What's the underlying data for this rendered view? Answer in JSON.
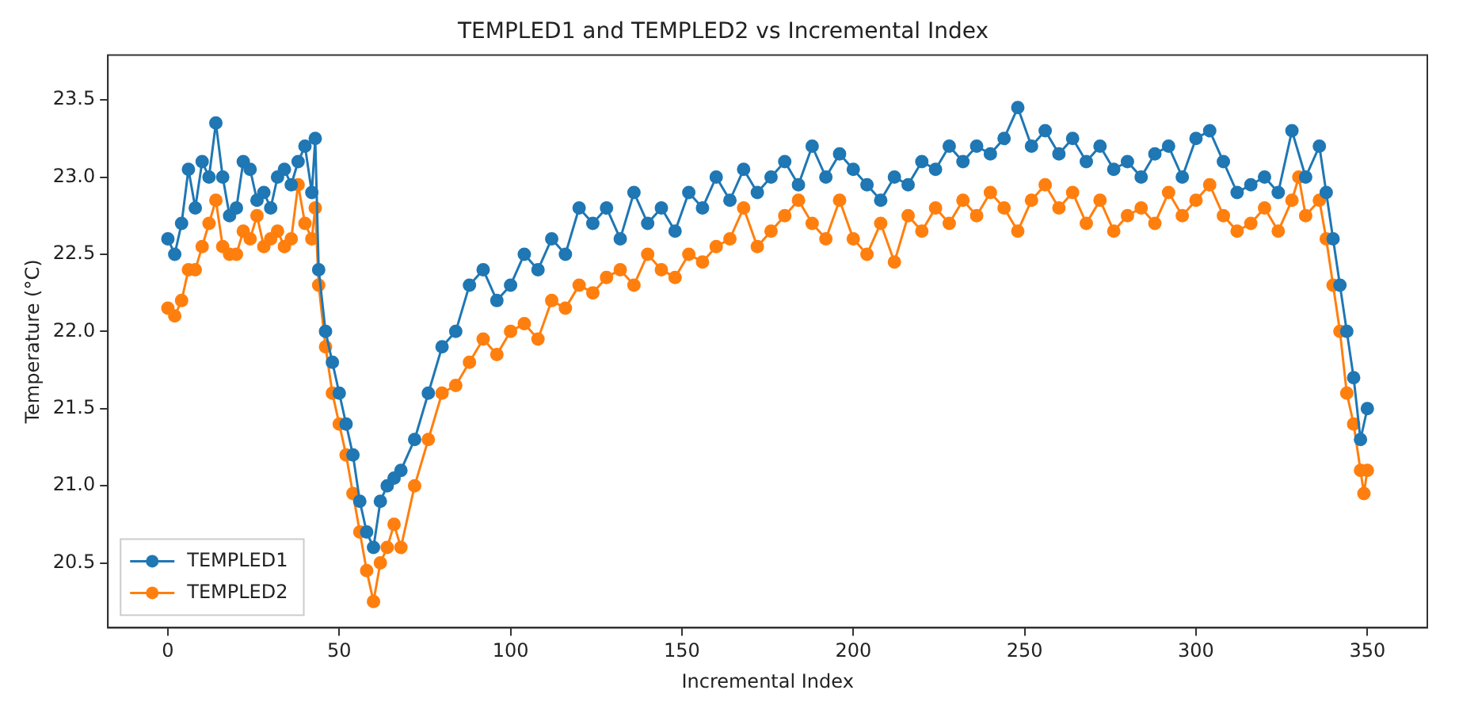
{
  "chart_data": {
    "type": "line",
    "title": "TEMPLED1 and TEMPLED2 vs Incremental Index",
    "xlabel": "Incremental Index",
    "ylabel": "Temperature (°C)",
    "xlim": [
      -17.5,
      367.5
    ],
    "xticks": [
      0,
      50,
      100,
      150,
      200,
      250,
      300,
      350
    ],
    "ylim": [
      20.08,
      23.79
    ],
    "yticks": [
      20.5,
      {
        "value": 21,
        "label": "21.0"
      },
      21.5,
      {
        "value": 22,
        "label": "22.0"
      },
      22.5,
      {
        "value": 23,
        "label": "23.0"
      },
      23.5
    ],
    "legend": "bottom left",
    "marker": "circle",
    "line_style": "solid",
    "grid": false,
    "series": [
      {
        "name": "TEMPLED1",
        "color": "#1f77b4",
        "x": [
          0,
          2,
          4,
          6,
          8,
          10,
          12,
          14,
          16,
          18,
          20,
          22,
          24,
          26,
          28,
          30,
          32,
          34,
          36,
          38,
          40,
          42,
          43,
          44,
          46,
          48,
          50,
          52,
          54,
          56,
          58,
          60,
          62,
          64,
          66,
          68,
          72,
          76,
          80,
          84,
          88,
          92,
          96,
          100,
          104,
          108,
          112,
          116,
          120,
          124,
          128,
          132,
          136,
          140,
          144,
          148,
          152,
          156,
          160,
          164,
          168,
          172,
          176,
          180,
          184,
          188,
          192,
          196,
          200,
          204,
          208,
          212,
          216,
          220,
          224,
          228,
          232,
          236,
          240,
          244,
          248,
          252,
          256,
          260,
          264,
          268,
          272,
          276,
          280,
          284,
          288,
          292,
          296,
          300,
          304,
          308,
          312,
          316,
          320,
          324,
          328,
          332,
          336,
          338,
          340,
          342,
          344,
          346,
          348,
          350
        ],
        "values": [
          22.6,
          22.5,
          22.7,
          23.05,
          22.8,
          23.1,
          23.0,
          23.35,
          23.0,
          22.75,
          22.8,
          23.1,
          23.05,
          22.85,
          22.9,
          22.8,
          23.0,
          23.05,
          22.95,
          23.1,
          23.2,
          22.9,
          23.25,
          22.4,
          22.0,
          21.8,
          21.6,
          21.4,
          21.2,
          20.9,
          20.7,
          20.6,
          20.9,
          21.0,
          21.05,
          21.1,
          21.3,
          21.6,
          21.9,
          22.0,
          22.3,
          22.4,
          22.2,
          22.3,
          22.5,
          22.4,
          22.6,
          22.5,
          22.8,
          22.7,
          22.8,
          22.6,
          22.9,
          22.7,
          22.8,
          22.65,
          22.9,
          22.8,
          23.0,
          22.85,
          23.05,
          22.9,
          23.0,
          23.1,
          22.95,
          23.2,
          23.0,
          23.15,
          23.05,
          22.95,
          22.85,
          23.0,
          22.95,
          23.1,
          23.05,
          23.2,
          23.1,
          23.2,
          23.15,
          23.25,
          23.45,
          23.2,
          23.3,
          23.15,
          23.25,
          23.1,
          23.2,
          23.05,
          23.1,
          23.0,
          23.15,
          23.2,
          23.0,
          23.25,
          23.3,
          23.1,
          22.9,
          22.95,
          23.0,
          22.9,
          23.3,
          23.0,
          23.2,
          22.9,
          22.6,
          22.3,
          22.0,
          21.7,
          21.3,
          21.5
        ]
      },
      {
        "name": "TEMPLED2",
        "color": "#ff7f0e",
        "x": [
          0,
          2,
          4,
          6,
          8,
          10,
          12,
          14,
          16,
          18,
          20,
          22,
          24,
          26,
          28,
          30,
          32,
          34,
          36,
          38,
          40,
          42,
          43,
          44,
          46,
          48,
          50,
          52,
          54,
          56,
          58,
          60,
          62,
          64,
          66,
          68,
          72,
          76,
          80,
          84,
          88,
          92,
          96,
          100,
          104,
          108,
          112,
          116,
          120,
          124,
          128,
          132,
          136,
          140,
          144,
          148,
          152,
          156,
          160,
          164,
          168,
          172,
          176,
          180,
          184,
          188,
          192,
          196,
          200,
          204,
          208,
          212,
          216,
          220,
          224,
          228,
          232,
          236,
          240,
          244,
          248,
          252,
          256,
          260,
          264,
          268,
          272,
          276,
          280,
          284,
          288,
          292,
          296,
          300,
          304,
          308,
          312,
          316,
          320,
          324,
          328,
          330,
          332,
          336,
          338,
          340,
          342,
          344,
          346,
          348,
          349,
          350
        ],
        "values": [
          22.15,
          22.1,
          22.2,
          22.4,
          22.4,
          22.55,
          22.7,
          22.85,
          22.55,
          22.5,
          22.5,
          22.65,
          22.6,
          22.75,
          22.55,
          22.6,
          22.65,
          22.55,
          22.6,
          22.95,
          22.7,
          22.6,
          22.8,
          22.3,
          21.9,
          21.6,
          21.4,
          21.2,
          20.95,
          20.7,
          20.45,
          20.25,
          20.5,
          20.6,
          20.75,
          20.6,
          21.0,
          21.3,
          21.6,
          21.65,
          21.8,
          21.95,
          21.85,
          22.0,
          22.05,
          21.95,
          22.2,
          22.15,
          22.3,
          22.25,
          22.35,
          22.4,
          22.3,
          22.5,
          22.4,
          22.35,
          22.5,
          22.45,
          22.55,
          22.6,
          22.8,
          22.55,
          22.65,
          22.75,
          22.85,
          22.7,
          22.6,
          22.85,
          22.6,
          22.5,
          22.7,
          22.45,
          22.75,
          22.65,
          22.8,
          22.7,
          22.85,
          22.75,
          22.9,
          22.8,
          22.65,
          22.85,
          22.95,
          22.8,
          22.9,
          22.7,
          22.85,
          22.65,
          22.75,
          22.8,
          22.7,
          22.9,
          22.75,
          22.85,
          22.95,
          22.75,
          22.65,
          22.7,
          22.8,
          22.65,
          22.85,
          23.0,
          22.75,
          22.85,
          22.6,
          22.3,
          22.0,
          21.6,
          21.4,
          21.1,
          20.95,
          21.1
        ]
      }
    ]
  }
}
